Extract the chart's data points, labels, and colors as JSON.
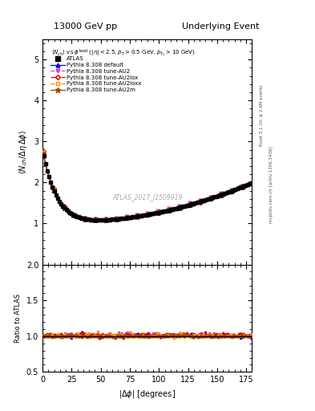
{
  "title_left": "13000 GeV pp",
  "title_right": "Underlying Event",
  "xlabel": "|\\Delta \\phi| [degrees]",
  "ylabel_main": "$\\langle N_{ch}/ \\Delta\\eta\\,\\Delta\\phi \\rangle$",
  "ylabel_ratio": "Ratio to ATLAS",
  "watermark": "ATLAS_2017_I1509919",
  "right_label1": "Rivet 3.1.10, \\u2265 2.6M events",
  "right_label2": "mcplots.cern.ch [arXiv:1306.3436]",
  "ylim_main": [
    0.0,
    5.5
  ],
  "ylim_ratio": [
    0.5,
    2.0
  ],
  "xlim": [
    0,
    180
  ],
  "yticks_main": [
    1,
    2,
    3,
    4,
    5
  ],
  "yticks_ratio": [
    0.5,
    1.0,
    1.5,
    2.0
  ],
  "colors": {
    "atlas": "#000000",
    "default": "#0000ff",
    "au2": "#cc44cc",
    "au2lox": "#cc0000",
    "au2loxx": "#ff8800",
    "au2m": "#994400"
  },
  "background_color": "#ffffff"
}
